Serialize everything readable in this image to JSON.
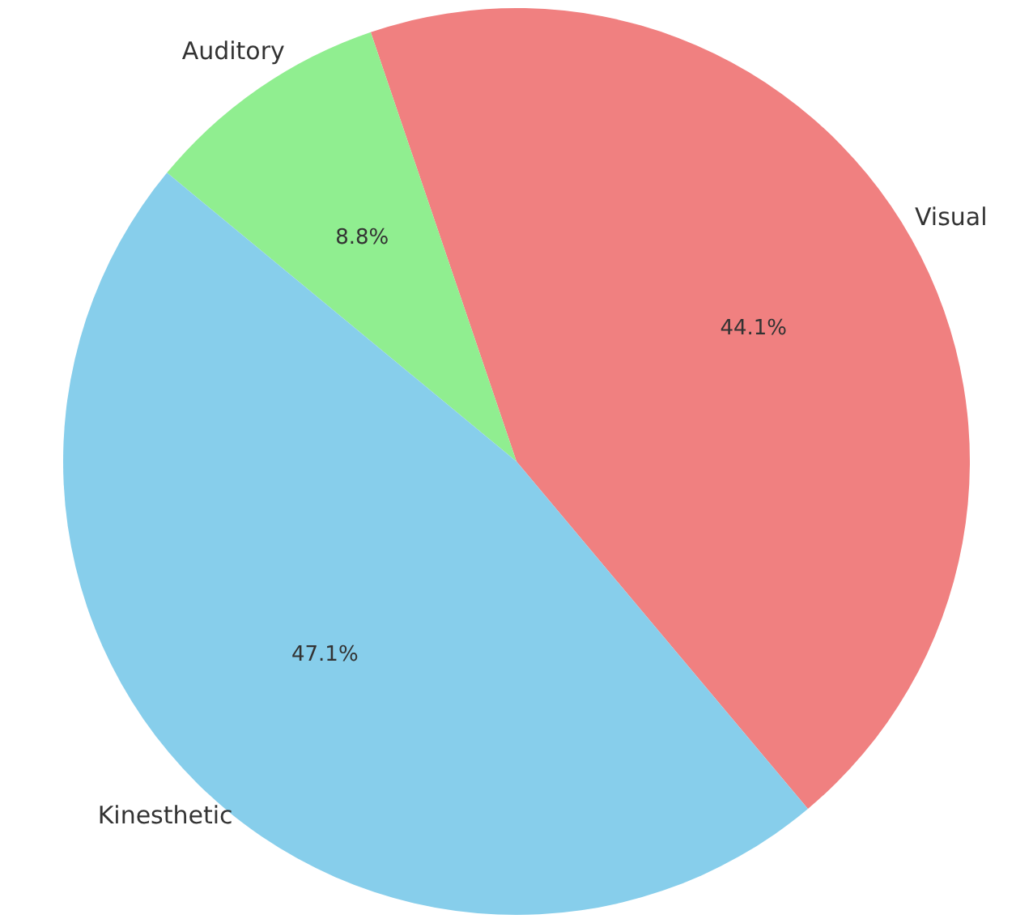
{
  "chart_data": {
    "type": "pie",
    "categories": [
      "Visual",
      "Auditory",
      "Kinesthetic"
    ],
    "values": [
      44.1,
      8.8,
      47.1
    ],
    "colors": [
      "#f08080",
      "#90ee90",
      "#87ceeb"
    ],
    "value_labels": [
      "44.1%",
      "8.8%",
      "47.1%"
    ]
  }
}
